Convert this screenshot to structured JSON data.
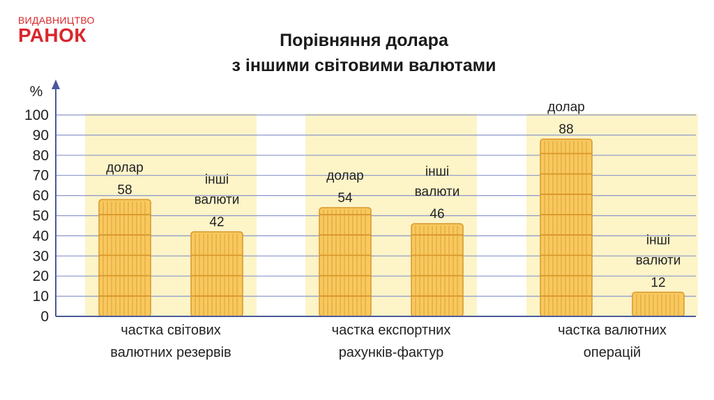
{
  "logo": {
    "top": "ВИДАВНИЦТВО",
    "main": "РАНОК",
    "color": "#d9262b"
  },
  "title": {
    "line1": "Порівняння долара",
    "line2": "з іншими світовими валютами"
  },
  "chart_data": {
    "type": "bar",
    "ylabel": "%",
    "ylim": [
      0,
      100
    ],
    "yticks": [
      0,
      10,
      20,
      30,
      40,
      50,
      60,
      70,
      80,
      90,
      100
    ],
    "grid": true,
    "colors": {
      "bar": "#f7c95e",
      "bar_line": "#d8962a",
      "band": "#fdf4c8",
      "grid": "#8a96c9",
      "axis": "#4a5a9a"
    },
    "groups": [
      {
        "category": [
          "частка  світових",
          "валютних  резервів"
        ],
        "bars": [
          {
            "label": [
              "долар"
            ],
            "value": 58
          },
          {
            "label": [
              "інші",
              "валюти"
            ],
            "value": 42
          }
        ]
      },
      {
        "category": [
          "частка  експортних",
          "рахунків-фактур"
        ],
        "bars": [
          {
            "label": [
              "долар"
            ],
            "value": 54
          },
          {
            "label": [
              "інші",
              "валюти"
            ],
            "value": 46
          }
        ]
      },
      {
        "category": [
          "частка  валютних",
          "операцій"
        ],
        "bars": [
          {
            "label": [
              "долар"
            ],
            "value": 88
          },
          {
            "label": [
              "інші",
              "валюти"
            ],
            "value": 12
          }
        ]
      }
    ]
  }
}
